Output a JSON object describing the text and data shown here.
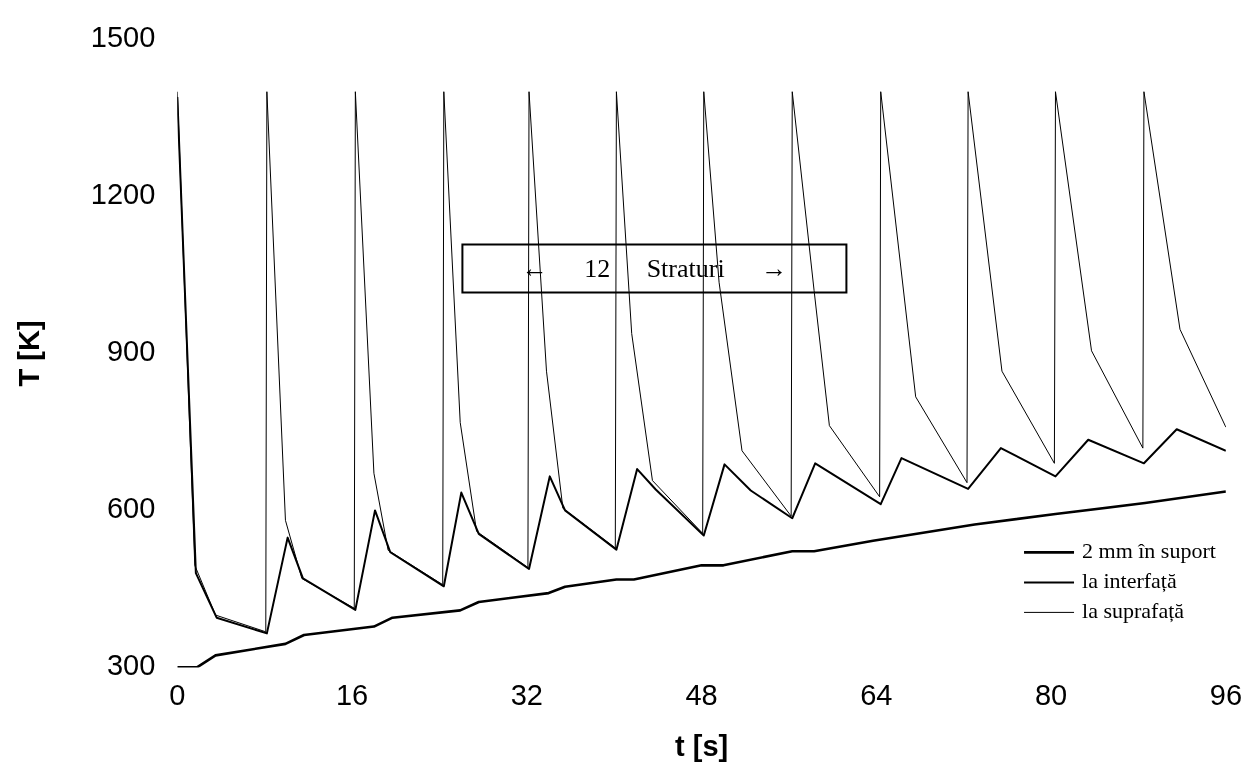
{
  "chart_data": {
    "type": "line",
    "xlabel": "t [s]",
    "ylabel": "T [K]",
    "annotations": [
      "← 12 Straturi →"
    ],
    "xlim": [
      0,
      96
    ],
    "xticks": [
      0,
      16,
      32,
      48,
      64,
      80,
      96
    ],
    "ylim": [
      300,
      1500
    ],
    "yticks": [
      300,
      600,
      900,
      1200,
      1500
    ],
    "grid": false,
    "legend": "bottom right",
    "marker": "none",
    "line_style": "solid",
    "series": [
      {
        "name": "2 mm în suport",
        "color": "#000000",
        "x": [
          0,
          1.8,
          3.5,
          9.9,
          11.6,
          18,
          19.7,
          25.9,
          27.6,
          34,
          35.5,
          40.2,
          41.8,
          48,
          50,
          56.3,
          58.3,
          63.7,
          73,
          80.4,
          88.6,
          96
        ],
        "values": [
          300,
          300,
          323,
          345,
          362,
          378,
          395,
          409,
          425,
          442,
          454,
          468,
          468,
          495,
          495,
          522,
          522,
          542,
          573,
          593,
          614,
          636
        ]
      },
      {
        "name": "la interfață",
        "color": "#000000",
        "x": [
          0,
          1.7,
          3.6,
          8.2,
          10.1,
          11.5,
          16.3,
          18.1,
          19.5,
          24.4,
          26,
          27.6,
          32.2,
          34.1,
          35.5,
          40.2,
          42.1,
          43.8,
          48.2,
          50.1,
          52.5,
          56.3,
          58.4,
          64.4,
          66.3,
          72.4,
          75.4,
          80.4,
          83.4,
          88.5,
          91.5,
          96
        ],
        "values": [
          1390,
          480,
          395,
          365,
          548,
          470,
          410,
          600,
          520,
          455,
          634,
          555,
          488,
          665,
          600,
          525,
          679,
          640,
          552,
          688,
          638,
          585,
          690,
          612,
          700,
          641,
          719,
          665,
          735,
          690,
          755,
          714
        ]
      },
      {
        "name": "la suprafață",
        "color": "#000000",
        "x": [
          0,
          1.6,
          3.5,
          8.1,
          8.2,
          9.9,
          11.4,
          16.2,
          16.3,
          18,
          19.3,
          24.3,
          24.4,
          25.9,
          27.4,
          32.1,
          32.2,
          33.8,
          35.3,
          40.1,
          40.2,
          41.6,
          43.5,
          48.1,
          48.2,
          49.6,
          51.7,
          56.2,
          56.3,
          58.3,
          59.7,
          64.3,
          64.4,
          67.6,
          72.3,
          72.4,
          75.5,
          80.3,
          80.4,
          83.7,
          88.4,
          88.5,
          91.8,
          96
        ],
        "values": [
          1400,
          495,
          400,
          368,
          1400,
          581,
          470,
          413,
          1400,
          671,
          524,
          458,
          1400,
          768,
          560,
          491,
          1400,
          866,
          604,
          528,
          1400,
          938,
          657,
          556,
          1400,
          1036,
          714,
          589,
          1400,
          1020,
          762,
          626,
          1400,
          817,
          653,
          1400,
          866,
          690,
          1400,
          905,
          719,
          1400,
          946,
          759
        ]
      }
    ]
  }
}
